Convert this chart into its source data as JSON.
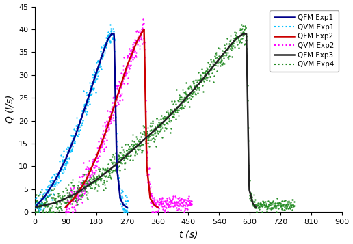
{
  "title": "",
  "xlabel": "t (s)",
  "ylabel": "Q (l/s)",
  "xlim": [
    0,
    900
  ],
  "ylim": [
    0,
    45
  ],
  "xticks": [
    0,
    90,
    180,
    270,
    360,
    450,
    540,
    630,
    720,
    810,
    900
  ],
  "yticks": [
    0,
    5,
    10,
    15,
    20,
    25,
    30,
    35,
    40,
    45
  ],
  "colors": {
    "QFM_Exp1": "#00008B",
    "QVM_Exp1": "#00BFFF",
    "QFM_Exp2": "#CC0000",
    "QVM_Exp2": "#FF00FF",
    "QFM_Exp3": "#222222",
    "QVM_Exp4": "#228B22"
  },
  "QFM_Exp1": {
    "t": [
      0,
      30,
      60,
      90,
      120,
      150,
      180,
      200,
      215,
      225,
      232,
      240,
      250,
      260,
      270
    ],
    "q": [
      1.0,
      3.5,
      7.0,
      11.5,
      17.0,
      23.5,
      30.5,
      35.0,
      38.0,
      39.0,
      39.0,
      10.0,
      3.0,
      1.5,
      1.0
    ]
  },
  "QFM_Exp2": {
    "t": [
      90,
      120,
      150,
      180,
      210,
      240,
      270,
      300,
      315,
      320,
      328,
      338,
      350,
      360
    ],
    "q": [
      1.0,
      3.5,
      7.0,
      12.0,
      18.0,
      25.0,
      32.0,
      37.5,
      39.5,
      40.0,
      10.0,
      3.0,
      1.5,
      1.0
    ]
  },
  "QFM_Exp3": {
    "t": [
      0,
      60,
      120,
      180,
      240,
      300,
      360,
      420,
      480,
      540,
      590,
      610,
      620,
      628,
      638,
      648
    ],
    "q": [
      1.0,
      2.0,
      4.0,
      7.0,
      10.5,
      14.5,
      18.5,
      23.0,
      28.0,
      33.5,
      38.0,
      39.0,
      39.0,
      5.0,
      2.0,
      1.0
    ]
  },
  "noise_seed": 42,
  "legend_labels": [
    "QFM Exp1",
    "QVM Exp1",
    "QFM Exp2",
    "QVM Exp2",
    "QFM Exp3",
    "QVM Exp4"
  ]
}
